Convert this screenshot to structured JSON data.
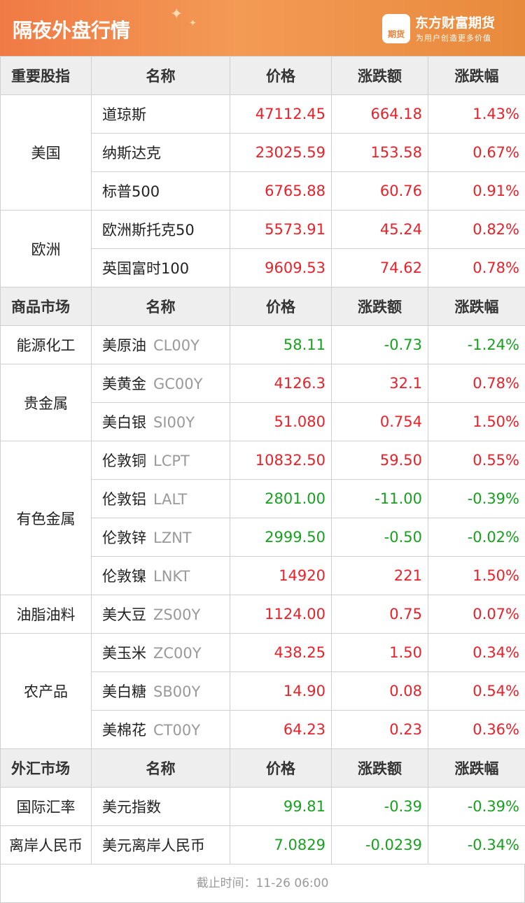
{
  "header": {
    "title": "隔夜外盘行情",
    "brand": "东方财富期货",
    "slogan": "为用户创造更多价值",
    "logo_text": "期货"
  },
  "colors": {
    "up": "#e8212a",
    "down": "#18a020",
    "header": "#f07a45"
  },
  "sections": [
    {
      "header": [
        "重要股指",
        "名称",
        "价格",
        "涨跌额",
        "涨跌幅"
      ],
      "groups": [
        {
          "cat": "美国",
          "rows": [
            {
              "name": "道琼斯",
              "code": "",
              "price": "47112.45",
              "chg": "664.18",
              "pct": "1.43%",
              "dir": "up"
            },
            {
              "name": "纳斯达克",
              "code": "",
              "price": "23025.59",
              "chg": "153.58",
              "pct": "0.67%",
              "dir": "up"
            },
            {
              "name": "标普500",
              "code": "",
              "price": "6765.88",
              "chg": "60.76",
              "pct": "0.91%",
              "dir": "up"
            }
          ]
        },
        {
          "cat": "欧洲",
          "rows": [
            {
              "name": "欧洲斯托克50",
              "code": "",
              "price": "5573.91",
              "chg": "45.24",
              "pct": "0.82%",
              "dir": "up"
            },
            {
              "name": "英国富时100",
              "code": "",
              "price": "9609.53",
              "chg": "74.62",
              "pct": "0.78%",
              "dir": "up"
            }
          ]
        }
      ]
    },
    {
      "header": [
        "商品市场",
        "名称",
        "价格",
        "涨跌额",
        "涨跌幅"
      ],
      "groups": [
        {
          "cat": "能源化工",
          "rows": [
            {
              "name": "美原油",
              "code": "CL00Y",
              "price": "58.11",
              "chg": "-0.73",
              "pct": "-1.24%",
              "dir": "dn"
            }
          ]
        },
        {
          "cat": "贵金属",
          "rows": [
            {
              "name": "美黄金",
              "code": "GC00Y",
              "price": "4126.3",
              "chg": "32.1",
              "pct": "0.78%",
              "dir": "up"
            },
            {
              "name": "美白银",
              "code": "SI00Y",
              "price": "51.080",
              "chg": "0.754",
              "pct": "1.50%",
              "dir": "up"
            }
          ]
        },
        {
          "cat": "有色金属",
          "rows": [
            {
              "name": "伦敦铜",
              "code": "LCPT",
              "price": "10832.50",
              "chg": "59.50",
              "pct": "0.55%",
              "dir": "up"
            },
            {
              "name": "伦敦铝",
              "code": "LALT",
              "price": "2801.00",
              "chg": "-11.00",
              "pct": "-0.39%",
              "dir": "dn"
            },
            {
              "name": "伦敦锌",
              "code": "LZNT",
              "price": "2999.50",
              "chg": "-0.50",
              "pct": "-0.02%",
              "dir": "dn"
            },
            {
              "name": "伦敦镍",
              "code": "LNKT",
              "price": "14920",
              "chg": "221",
              "pct": "1.50%",
              "dir": "up"
            }
          ]
        },
        {
          "cat": "油脂油料",
          "rows": [
            {
              "name": "美大豆",
              "code": "ZS00Y",
              "price": "1124.00",
              "chg": "0.75",
              "pct": "0.07%",
              "dir": "up"
            }
          ]
        },
        {
          "cat": "农产品",
          "rows": [
            {
              "name": "美玉米",
              "code": "ZC00Y",
              "price": "438.25",
              "chg": "1.50",
              "pct": "0.34%",
              "dir": "up"
            },
            {
              "name": "美白糖",
              "code": "SB00Y",
              "price": "14.90",
              "chg": "0.08",
              "pct": "0.54%",
              "dir": "up"
            },
            {
              "name": "美棉花",
              "code": "CT00Y",
              "price": "64.23",
              "chg": "0.23",
              "pct": "0.36%",
              "dir": "up"
            }
          ]
        }
      ]
    },
    {
      "header": [
        "外汇市场",
        "名称",
        "价格",
        "涨跌额",
        "涨跌幅"
      ],
      "groups": [
        {
          "cat": "国际汇率",
          "rows": [
            {
              "name": "美元指数",
              "code": "",
              "price": "99.81",
              "chg": "-0.39",
              "pct": "-0.39%",
              "dir": "dn"
            }
          ]
        },
        {
          "cat": "离岸人民币",
          "rows": [
            {
              "name": "美元离岸人民币",
              "code": "",
              "price": "7.0829",
              "chg": "-0.0239",
              "pct": "-0.34%",
              "dir": "dn"
            }
          ]
        }
      ]
    }
  ],
  "footer": "截止时间：11-26 06:00"
}
